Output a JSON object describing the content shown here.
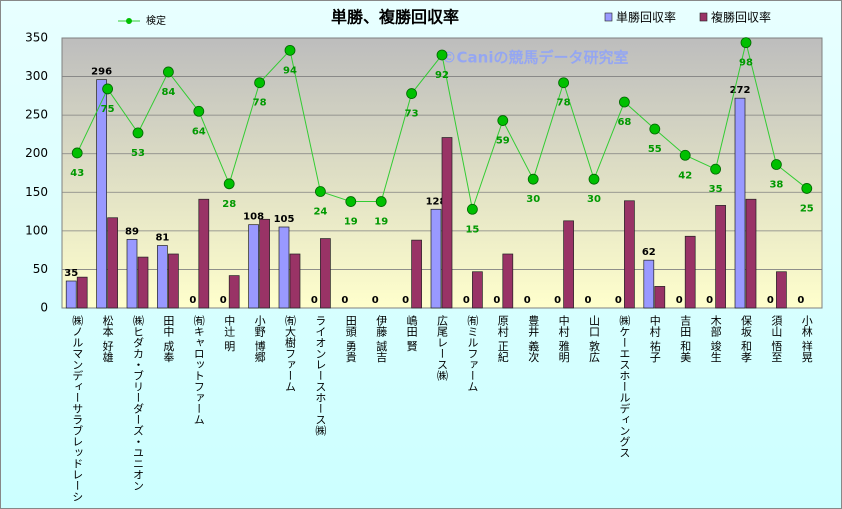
{
  "chart_data": {
    "type": "bar-line",
    "title": "単勝、複勝回収率",
    "watermark": "©Caniの競馬データ研究室",
    "categories": [
      "㈱ノルマンディーサラブレッドレーシ",
      "松本 好雄",
      "㈱ヒダカ・ブリーダーズ・ユニオン",
      "田中 成奉",
      "㈲キャロットファーム",
      "中辻 明",
      "小野 博郷",
      "㈲大樹ファーム",
      "ライオンレースホース㈱",
      "田頭 勇貴",
      "伊藤 誠吉",
      "嶋田 賢",
      "広尾レース㈱",
      "㈲ミルファーム",
      "原村 正紀",
      "豊井 義次",
      "中村 雅明",
      "山口 敦広",
      "㈱ケーエスホールディングス",
      "中村 祐子",
      "吉田 和美",
      "木部 竣生",
      "保坂 和孝",
      "須山 悟至",
      "小林 祥晃"
    ],
    "series": [
      {
        "name": "単勝回収率",
        "color": "#9999ff",
        "values": [
          35,
          296,
          89,
          81,
          0,
          0,
          108,
          105,
          0,
          0,
          0,
          0,
          128,
          0,
          0,
          0,
          0,
          0,
          0,
          62,
          0,
          0,
          272,
          0,
          0
        ]
      },
      {
        "name": "複勝回収率",
        "color": "#993366",
        "values": [
          40,
          117,
          66,
          70,
          141,
          42,
          115,
          70,
          90,
          0,
          0,
          88,
          221,
          47,
          70,
          0,
          113,
          0,
          139,
          28,
          93,
          133,
          141,
          47,
          0
        ]
      },
      {
        "name": "検定",
        "color": "#33cc33",
        "values": [
          201,
          284,
          227,
          306,
          255,
          161,
          292,
          334,
          151,
          138,
          138,
          278,
          328,
          128,
          243,
          167,
          292,
          167,
          267,
          232,
          198,
          180,
          344,
          186,
          155
        ],
        "point_labels": [
          43,
          75,
          53,
          84,
          64,
          28,
          78,
          94,
          24,
          19,
          19,
          73,
          92,
          15,
          59,
          30,
          78,
          30,
          68,
          55,
          42,
          35,
          98,
          38,
          25
        ]
      }
    ],
    "ylim": [
      0,
      350
    ],
    "yticks": [
      0,
      50,
      100,
      150,
      200,
      250,
      300,
      350
    ],
    "grid": true
  }
}
